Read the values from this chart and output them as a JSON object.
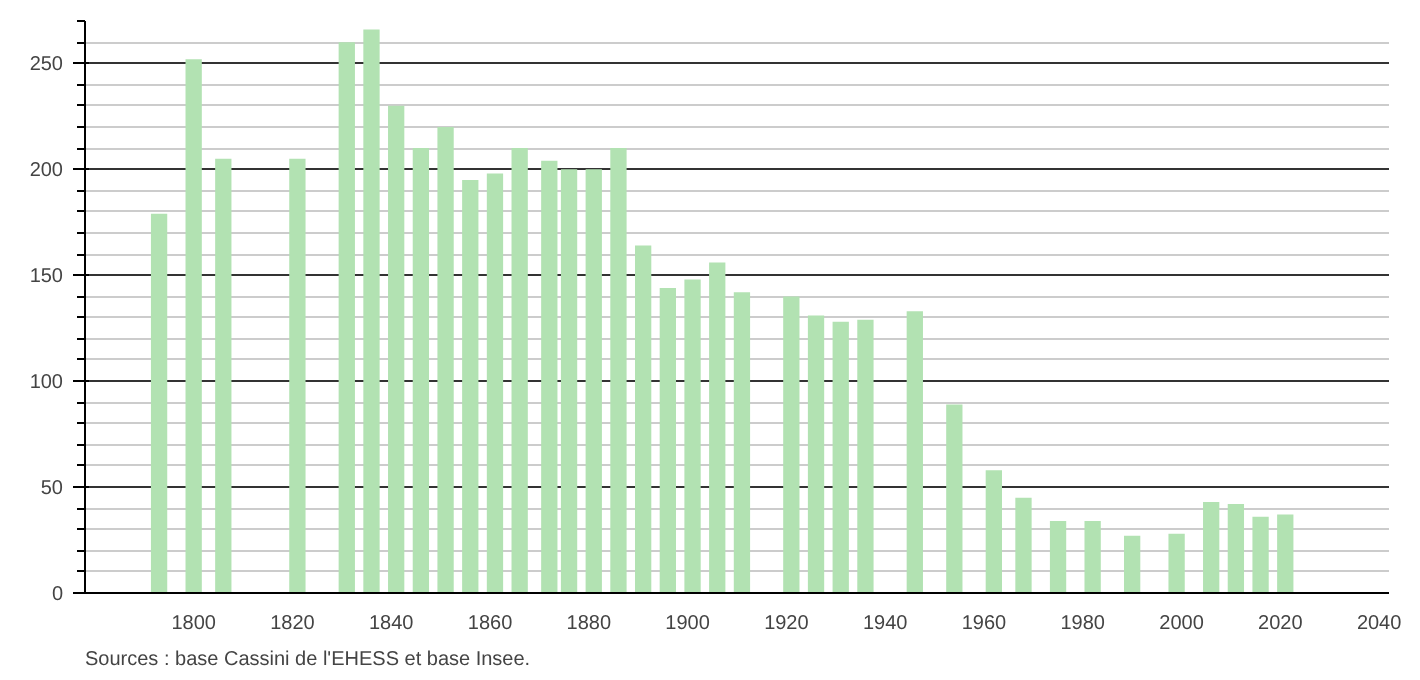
{
  "chart_data": {
    "type": "bar",
    "x": [
      1793,
      1800,
      1806,
      1821,
      1831,
      1836,
      1841,
      1846,
      1851,
      1856,
      1861,
      1866,
      1872,
      1876,
      1881,
      1886,
      1891,
      1896,
      1901,
      1906,
      1911,
      1921,
      1926,
      1931,
      1936,
      1946,
      1954,
      1962,
      1968,
      1975,
      1982,
      1990,
      1999,
      2006,
      2011,
      2016,
      2021
    ],
    "values": [
      179,
      252,
      205,
      205,
      260,
      266,
      230,
      210,
      220,
      195,
      198,
      210,
      204,
      200,
      200,
      210,
      164,
      144,
      148,
      156,
      142,
      140,
      131,
      128,
      129,
      133,
      89,
      58,
      45,
      34,
      34,
      27,
      28,
      43,
      42,
      36,
      37
    ],
    "color": "#b2e2b2",
    "xlim": [
      1778,
      2042
    ],
    "xticks": [
      1800,
      1820,
      1840,
      1860,
      1880,
      1900,
      1920,
      1940,
      1960,
      1980,
      2000,
      2020,
      2040
    ],
    "ylim": [
      0,
      270
    ],
    "yticks": [
      0,
      50,
      100,
      150,
      200,
      250
    ],
    "grid": "y",
    "annotations": [
      "Sources : base Cassini de l'EHESS et base Insee."
    ]
  }
}
